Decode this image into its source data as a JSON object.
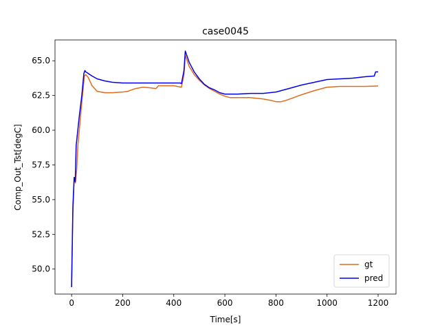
{
  "chart_data": {
    "type": "line",
    "title": "case0045",
    "xlabel": "Time[s]",
    "ylabel": "Comp_Out_Tst[degC]",
    "xlim": [
      -65,
      1270
    ],
    "ylim": [
      48.2,
      66.5
    ],
    "x_ticks": [
      0,
      200,
      400,
      600,
      800,
      1000,
      1200
    ],
    "x_tick_labels": [
      "0",
      "200",
      "400",
      "600",
      "800",
      "1000",
      "1200"
    ],
    "y_ticks": [
      50.0,
      52.5,
      55.0,
      57.5,
      60.0,
      62.5,
      65.0
    ],
    "y_tick_labels": [
      "50.0",
      "52.5",
      "55.0",
      "57.5",
      "60.0",
      "62.5",
      "65.0"
    ],
    "grid": false,
    "legend_position": "lower-right",
    "series": [
      {
        "name": "gt",
        "color": "#e06b1a",
        "x": [
          0,
          5,
          10,
          15,
          20,
          25,
          30,
          40,
          50,
          55,
          65,
          80,
          100,
          130,
          160,
          200,
          220,
          250,
          280,
          310,
          330,
          340,
          350,
          400,
          430,
          440,
          445,
          460,
          480,
          500,
          520,
          540,
          560,
          580,
          600,
          620,
          650,
          700,
          750,
          780,
          800,
          820,
          840,
          870,
          900,
          950,
          1000,
          1050,
          1100,
          1150,
          1200
        ],
        "y": [
          48.7,
          54.0,
          56.6,
          56.2,
          57.2,
          59.0,
          60.0,
          62.0,
          63.9,
          64.0,
          63.8,
          63.2,
          62.8,
          62.7,
          62.7,
          62.75,
          62.8,
          63.0,
          63.1,
          63.05,
          63.0,
          63.2,
          63.2,
          63.2,
          63.1,
          64.0,
          65.4,
          64.6,
          64.0,
          63.6,
          63.25,
          63.0,
          62.8,
          62.6,
          62.45,
          62.35,
          62.35,
          62.35,
          62.25,
          62.15,
          62.05,
          62.05,
          62.15,
          62.35,
          62.55,
          62.85,
          63.1,
          63.15,
          63.15,
          63.15,
          63.18
        ]
      },
      {
        "name": "pred",
        "color": "#0000ee",
        "x": [
          0,
          5,
          10,
          14,
          18,
          22,
          30,
          40,
          48,
          52,
          55,
          60,
          80,
          100,
          130,
          160,
          200,
          250,
          300,
          350,
          400,
          425,
          430,
          440,
          445,
          460,
          480,
          500,
          520,
          540,
          560,
          580,
          600,
          620,
          650,
          700,
          750,
          800,
          850,
          900,
          950,
          1000,
          1050,
          1100,
          1150,
          1185,
          1190,
          1200
        ],
        "y": [
          48.7,
          54.5,
          56.6,
          56.3,
          58.9,
          59.6,
          61.0,
          62.5,
          64.1,
          64.3,
          64.2,
          64.15,
          63.9,
          63.7,
          63.55,
          63.45,
          63.4,
          63.4,
          63.4,
          63.4,
          63.4,
          63.4,
          63.35,
          64.3,
          65.7,
          64.9,
          64.2,
          63.7,
          63.3,
          63.05,
          62.9,
          62.7,
          62.6,
          62.6,
          62.6,
          62.65,
          62.65,
          62.75,
          63.0,
          63.25,
          63.45,
          63.65,
          63.7,
          63.75,
          63.85,
          63.9,
          64.2,
          64.2
        ]
      }
    ]
  }
}
